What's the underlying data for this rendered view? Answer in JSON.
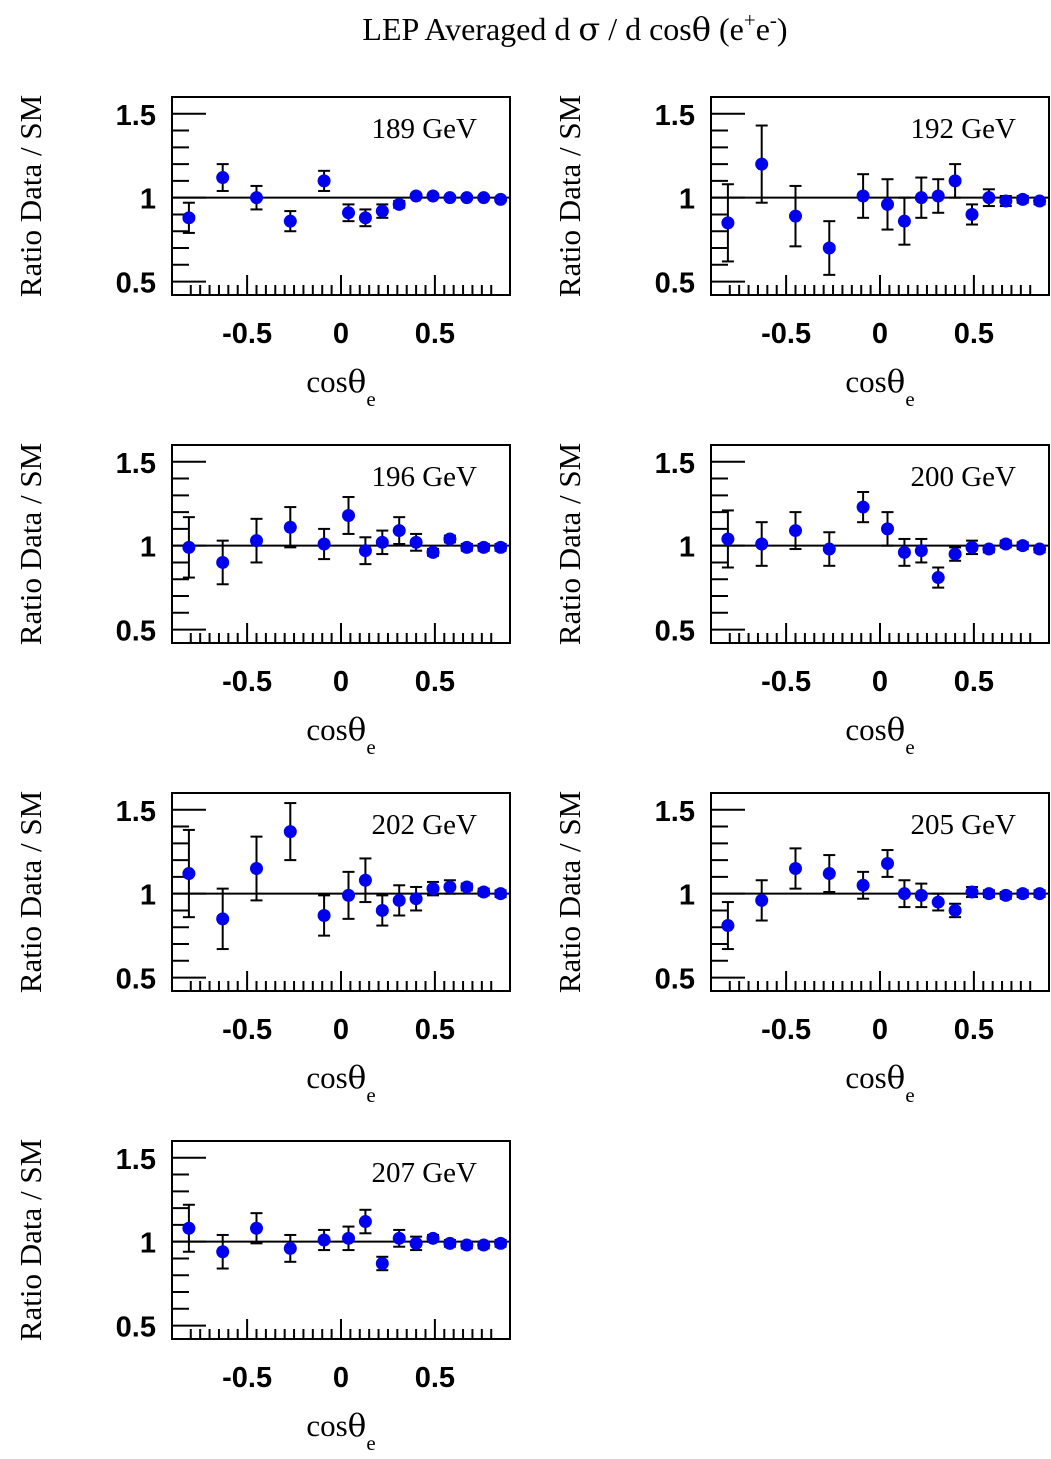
{
  "title": {
    "main": "LEP Averaged  d ",
    "sigma": "σ",
    "mid": " / d cos",
    "theta": "θ",
    "paren": " (e",
    "sup_plus": "+",
    "e2": "e",
    "sup_minus": "-",
    "close": ")"
  },
  "axes": {
    "ylabel": "Ratio Data / SM",
    "xlabel_main": "cos",
    "xlabel_theta": "θ",
    "xlabel_sub": "e",
    "x_ticks": [
      -0.5,
      0,
      0.5
    ],
    "x_tick_labels": [
      "-0.5",
      "0",
      "0.5"
    ],
    "y_ticks": [
      0.5,
      1,
      1.5
    ],
    "y_tick_labels": [
      "0.5",
      "1",
      "1.5"
    ]
  },
  "colors": {
    "marker": "#0000ee",
    "axis": "#000000"
  },
  "chart_data": [
    {
      "type": "scatter",
      "label": "189 GeV",
      "xlim": [
        -0.9,
        0.9
      ],
      "ylim": [
        0.42,
        1.6
      ],
      "reference_line": 1,
      "x": [
        -0.81,
        -0.63,
        -0.45,
        -0.27,
        -0.09,
        0.04,
        0.13,
        0.22,
        0.31,
        0.4,
        0.49,
        0.58,
        0.67,
        0.76,
        0.85
      ],
      "y": [
        0.88,
        1.12,
        1.0,
        0.86,
        1.1,
        0.91,
        0.88,
        0.92,
        0.96,
        1.01,
        1.01,
        1.0,
        1.0,
        1.0,
        0.99
      ],
      "err": [
        0.09,
        0.08,
        0.07,
        0.06,
        0.06,
        0.05,
        0.05,
        0.04,
        0.02,
        0.01,
        0.01,
        0.01,
        0.01,
        0.01,
        0.01
      ]
    },
    {
      "type": "scatter",
      "label": "192 GeV",
      "xlim": [
        -0.9,
        0.9
      ],
      "ylim": [
        0.42,
        1.6
      ],
      "reference_line": 1,
      "x": [
        -0.81,
        -0.63,
        -0.45,
        -0.27,
        -0.09,
        0.04,
        0.13,
        0.22,
        0.31,
        0.4,
        0.49,
        0.58,
        0.67,
        0.76,
        0.85
      ],
      "y": [
        0.85,
        1.2,
        0.89,
        0.7,
        1.01,
        0.96,
        0.86,
        1.0,
        1.01,
        1.1,
        0.9,
        1.0,
        0.98,
        0.99,
        0.98
      ],
      "err": [
        0.23,
        0.23,
        0.18,
        0.16,
        0.13,
        0.15,
        0.14,
        0.12,
        0.1,
        0.1,
        0.06,
        0.05,
        0.03,
        0.02,
        0.02
      ]
    },
    {
      "type": "scatter",
      "label": "196 GeV",
      "xlim": [
        -0.9,
        0.9
      ],
      "ylim": [
        0.42,
        1.6
      ],
      "reference_line": 1,
      "x": [
        -0.81,
        -0.63,
        -0.45,
        -0.27,
        -0.09,
        0.04,
        0.13,
        0.22,
        0.31,
        0.4,
        0.49,
        0.58,
        0.67,
        0.76,
        0.85
      ],
      "y": [
        0.99,
        0.9,
        1.03,
        1.11,
        1.01,
        1.18,
        0.97,
        1.02,
        1.09,
        1.02,
        0.96,
        1.04,
        0.99,
        0.99,
        0.99
      ],
      "err": [
        0.18,
        0.13,
        0.13,
        0.12,
        0.09,
        0.11,
        0.08,
        0.07,
        0.08,
        0.05,
        0.02,
        0.02,
        0.02,
        0.02,
        0.02
      ]
    },
    {
      "type": "scatter",
      "label": "200 GeV",
      "xlim": [
        -0.9,
        0.9
      ],
      "ylim": [
        0.42,
        1.6
      ],
      "reference_line": 1,
      "x": [
        -0.81,
        -0.63,
        -0.45,
        -0.27,
        -0.09,
        0.04,
        0.13,
        0.22,
        0.31,
        0.4,
        0.49,
        0.58,
        0.67,
        0.76,
        0.85
      ],
      "y": [
        1.04,
        1.01,
        1.09,
        0.98,
        1.23,
        1.1,
        0.96,
        0.97,
        0.81,
        0.95,
        0.99,
        0.98,
        1.01,
        1.0,
        0.98
      ],
      "err": [
        0.17,
        0.13,
        0.11,
        0.1,
        0.09,
        0.1,
        0.08,
        0.07,
        0.06,
        0.04,
        0.04,
        0.02,
        0.02,
        0.02,
        0.02
      ]
    },
    {
      "type": "scatter",
      "label": "202 GeV",
      "xlim": [
        -0.9,
        0.9
      ],
      "ylim": [
        0.42,
        1.6
      ],
      "reference_line": 1,
      "x": [
        -0.81,
        -0.63,
        -0.45,
        -0.27,
        -0.09,
        0.04,
        0.13,
        0.22,
        0.31,
        0.4,
        0.49,
        0.58,
        0.67,
        0.76,
        0.85
      ],
      "y": [
        1.12,
        0.85,
        1.15,
        1.37,
        0.87,
        0.99,
        1.08,
        0.9,
        0.96,
        0.97,
        1.03,
        1.04,
        1.04,
        1.01,
        1.0
      ],
      "err": [
        0.26,
        0.18,
        0.19,
        0.17,
        0.12,
        0.14,
        0.13,
        0.09,
        0.09,
        0.07,
        0.04,
        0.04,
        0.02,
        0.02,
        0.02
      ]
    },
    {
      "type": "scatter",
      "label": "205 GeV",
      "xlim": [
        -0.9,
        0.9
      ],
      "ylim": [
        0.42,
        1.6
      ],
      "reference_line": 1,
      "x": [
        -0.81,
        -0.63,
        -0.45,
        -0.27,
        -0.09,
        0.04,
        0.13,
        0.22,
        0.31,
        0.4,
        0.49,
        0.58,
        0.67,
        0.76,
        0.85
      ],
      "y": [
        0.81,
        0.96,
        1.15,
        1.12,
        1.05,
        1.18,
        1.0,
        0.99,
        0.95,
        0.9,
        1.01,
        1.0,
        0.99,
        1.0,
        1.0
      ],
      "err": [
        0.14,
        0.12,
        0.12,
        0.11,
        0.08,
        0.08,
        0.08,
        0.07,
        0.05,
        0.04,
        0.03,
        0.02,
        0.02,
        0.02,
        0.02
      ]
    },
    {
      "type": "scatter",
      "label": "207 GeV",
      "xlim": [
        -0.9,
        0.9
      ],
      "ylim": [
        0.42,
        1.6
      ],
      "reference_line": 1,
      "x": [
        -0.81,
        -0.63,
        -0.45,
        -0.27,
        -0.09,
        0.04,
        0.13,
        0.22,
        0.31,
        0.4,
        0.49,
        0.58,
        0.67,
        0.76,
        0.85
      ],
      "y": [
        1.08,
        0.94,
        1.08,
        0.96,
        1.01,
        1.02,
        1.12,
        0.87,
        1.02,
        0.99,
        1.02,
        0.99,
        0.98,
        0.98,
        0.99
      ],
      "err": [
        0.14,
        0.1,
        0.09,
        0.08,
        0.06,
        0.07,
        0.07,
        0.04,
        0.05,
        0.04,
        0.02,
        0.02,
        0.02,
        0.02,
        0.02
      ]
    }
  ]
}
